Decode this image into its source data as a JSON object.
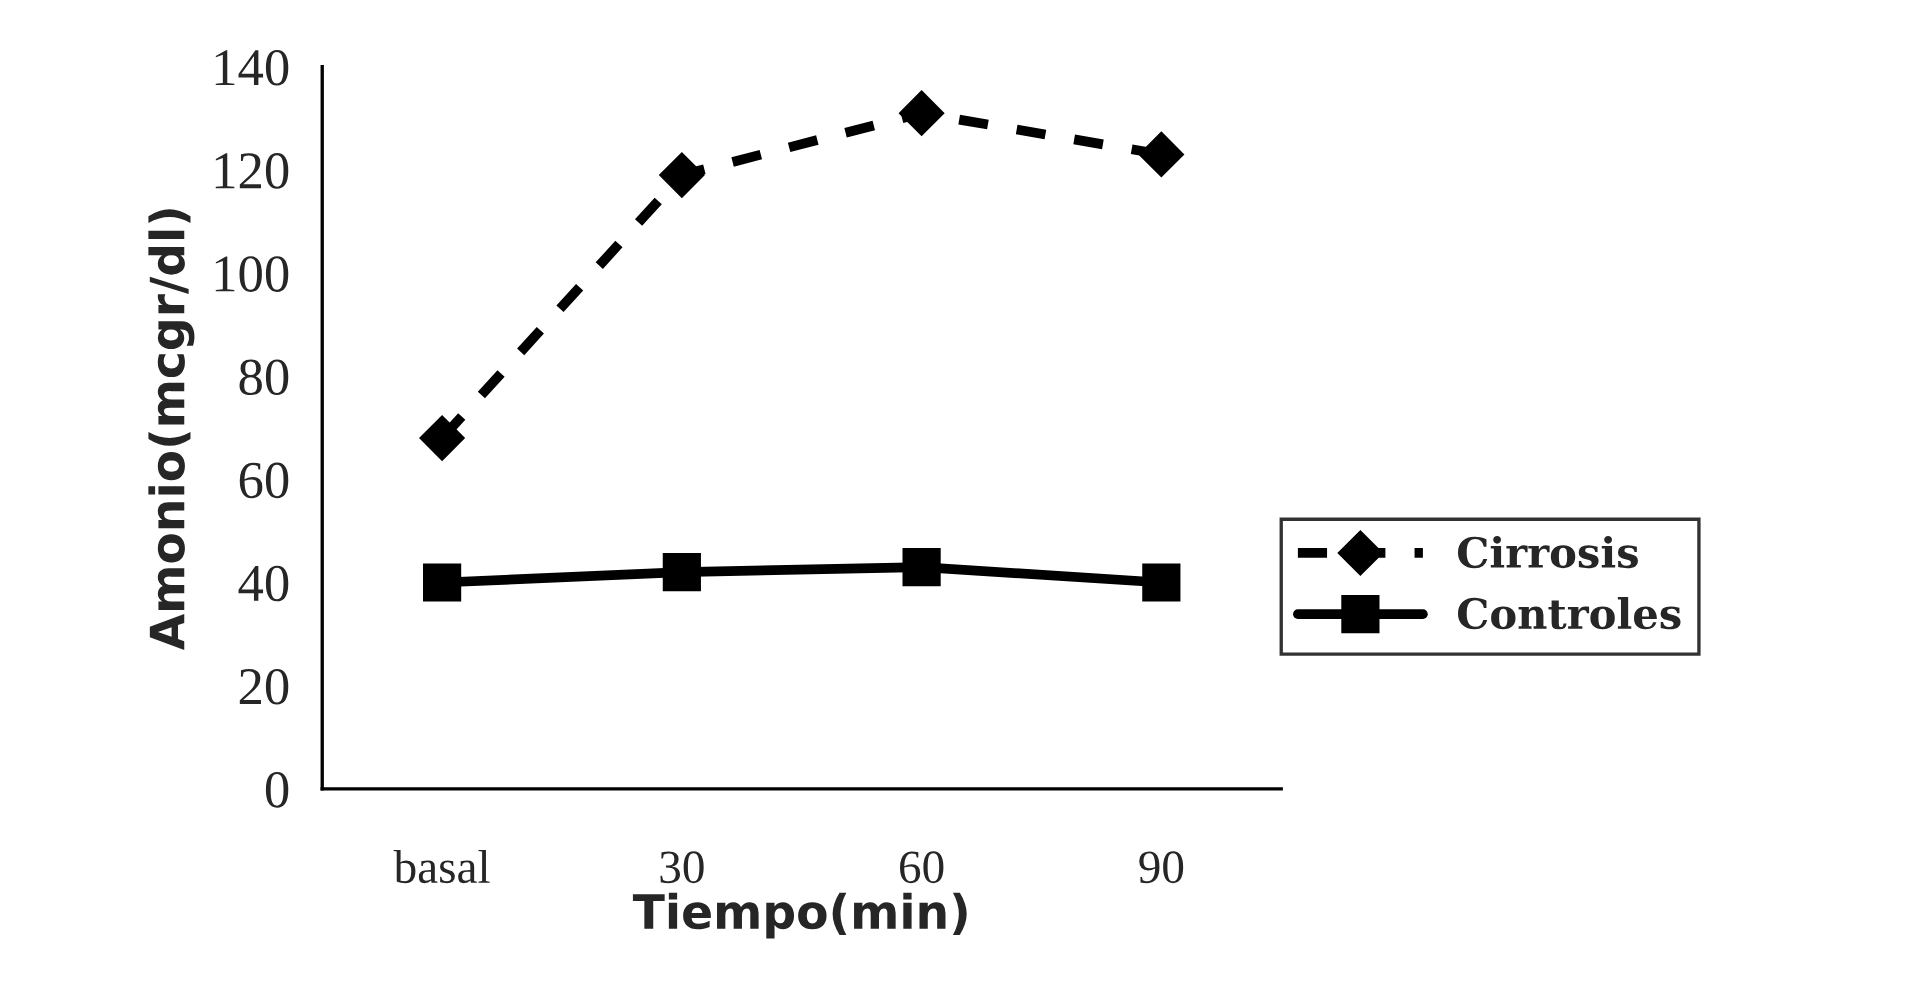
{
  "chart_data": {
    "type": "line",
    "xlabel": "Tiempo(min)",
    "ylabel": "Amonio(mcgr/dl)",
    "categories": [
      "basal",
      "30",
      "60",
      "90"
    ],
    "series": [
      {
        "name": "Cirrosis",
        "color": "#000000",
        "values": [
          68,
          119,
          131,
          123
        ],
        "marker": "diamond",
        "line_style": "dashed"
      },
      {
        "name": "Controles",
        "color": "#000000",
        "values": [
          40,
          42,
          43,
          40
        ],
        "marker": "square",
        "line_style": "solid"
      }
    ],
    "ylim": [
      0,
      140
    ],
    "yticks": [
      0,
      20,
      40,
      60,
      80,
      100,
      120,
      140
    ],
    "grid": false,
    "legend": "right"
  }
}
